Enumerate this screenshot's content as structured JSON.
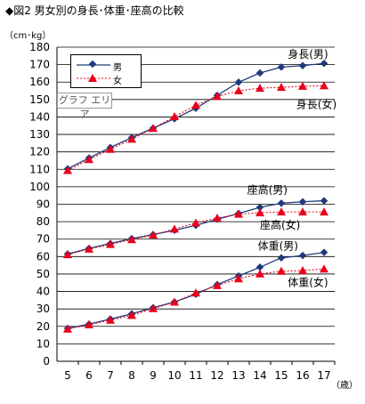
{
  "title": "◆図2 男女別の身長･体重･座高の比較",
  "plot_area_tag": "グラフ エリア",
  "colors": {
    "male": "#1f3a7a",
    "female": "#e8001c",
    "grid": "#000000"
  },
  "chart_data": {
    "type": "line",
    "ylabel": "（cm･kg）",
    "xunit": "（歳）",
    "ylim": [
      0,
      180
    ],
    "yticks": [
      0,
      10,
      20,
      30,
      40,
      50,
      60,
      70,
      80,
      90,
      100,
      110,
      120,
      130,
      140,
      150,
      160,
      170,
      180
    ],
    "x": [
      5,
      6,
      7,
      8,
      9,
      10,
      11,
      12,
      13,
      14,
      15,
      16,
      17
    ],
    "legend": {
      "position": "top-left",
      "male": "男",
      "female": "女"
    },
    "grid": "horizontal",
    "series": [
      {
        "name": "身長(男)",
        "group": "male",
        "values": [
          110.3,
          116.5,
          122.5,
          128.2,
          133.6,
          139.0,
          145.0,
          152.4,
          159.9,
          165.2,
          168.6,
          169.4,
          170.7
        ]
      },
      {
        "name": "身長(女)",
        "group": "female",
        "values": [
          109.4,
          115.6,
          121.5,
          127.3,
          133.5,
          140.2,
          146.7,
          151.8,
          155.0,
          156.5,
          157.0,
          157.6,
          157.9
        ]
      },
      {
        "name": "座高(男)",
        "group": "male",
        "values": [
          61.5,
          64.7,
          67.5,
          70.3,
          72.6,
          75.1,
          77.9,
          81.4,
          84.7,
          88.2,
          90.6,
          91.4,
          92.0
        ]
      },
      {
        "name": "座高(女)",
        "group": "female",
        "values": [
          61.1,
          64.3,
          67.0,
          69.7,
          72.4,
          75.8,
          79.3,
          82.1,
          84.3,
          85.1,
          85.6,
          85.6,
          85.6
        ]
      },
      {
        "name": "体重(男)",
        "group": "male",
        "values": [
          18.9,
          21.3,
          24.2,
          27.2,
          30.7,
          34.0,
          38.4,
          44.0,
          48.9,
          53.9,
          59.3,
          60.6,
          62.4
        ]
      },
      {
        "name": "体重(女)",
        "group": "female",
        "values": [
          18.5,
          21.0,
          23.6,
          26.3,
          30.2,
          33.9,
          39.2,
          43.4,
          47.3,
          50.1,
          51.6,
          52.0,
          52.9
        ]
      }
    ],
    "annotations": [
      {
        "text": "身長(男)",
        "x": 15.3,
        "y": 174
      },
      {
        "text": "身長(女)",
        "x": 15.7,
        "y": 145
      },
      {
        "text": "座高(男)",
        "x": 13.4,
        "y": 96
      },
      {
        "text": "座高(女)",
        "x": 14.0,
        "y": 76
      },
      {
        "text": "体重(男)",
        "x": 13.9,
        "y": 64
      },
      {
        "text": "体重(女)",
        "x": 15.3,
        "y": 43
      }
    ]
  }
}
